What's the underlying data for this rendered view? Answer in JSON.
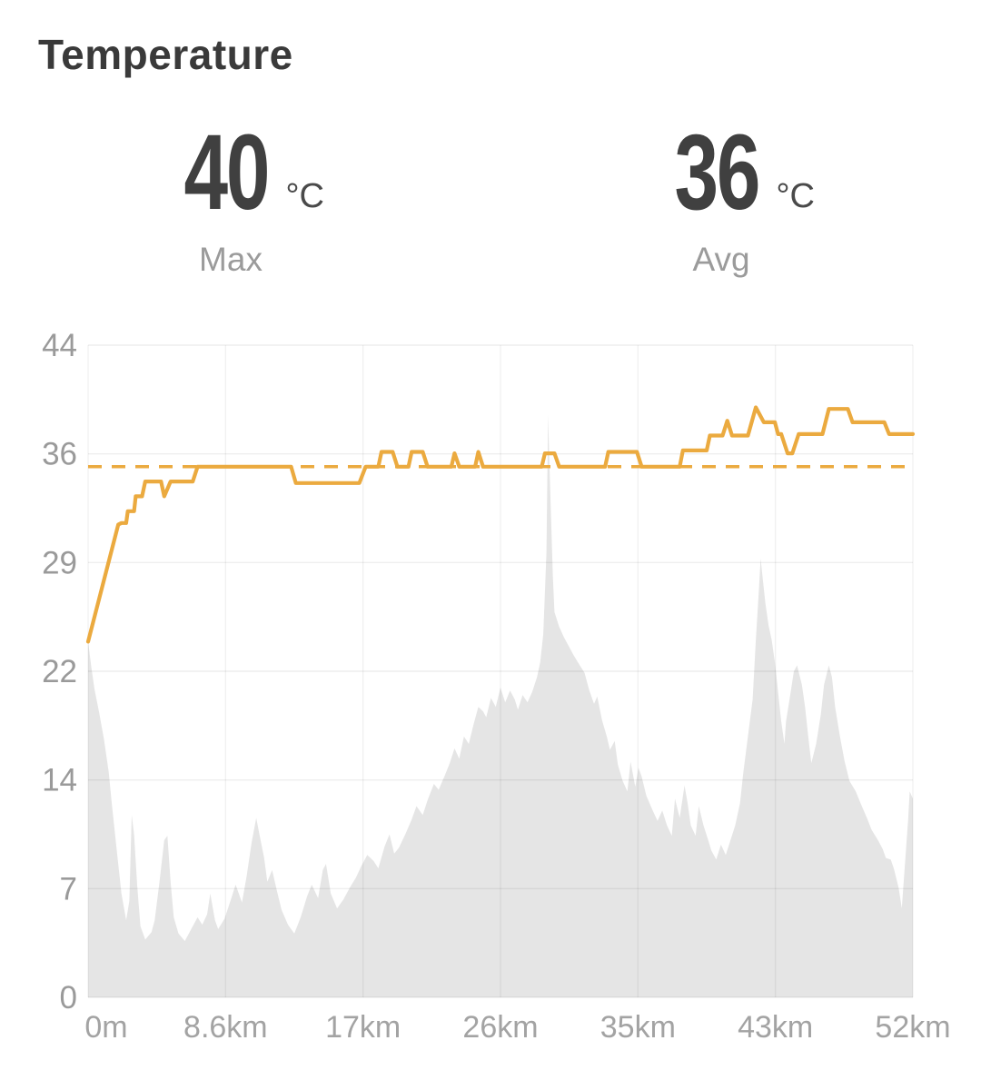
{
  "title": "Temperature",
  "chart_data": {
    "type": "line",
    "title": "Temperature",
    "stats": [
      {
        "value": "40",
        "unit": "°C",
        "label": "Max"
      },
      {
        "value": "36",
        "unit": "°C",
        "label": "Avg"
      }
    ],
    "y_axis": {
      "tick_labels": [
        "44",
        "36",
        "29",
        "22",
        "14",
        "7",
        "0"
      ],
      "range": [
        0,
        44
      ],
      "note": "7 evenly spaced horizontal gridlines, labels top to bottom"
    },
    "x_axis": {
      "tick_labels": [
        "0m",
        "8.6km",
        "17km",
        "26km",
        "35km",
        "43km",
        "52km"
      ],
      "range_km": [
        0,
        52
      ]
    },
    "average_line": {
      "value_c": 35.8,
      "style": "dashed"
    },
    "grid": true,
    "legend": false,
    "colors": {
      "line": "#ebaa3f",
      "elevation_fill": "#e5e5e5",
      "axis_text": "#9a9a9a"
    },
    "series": [
      {
        "name": "temperature",
        "unit": "°C",
        "color": "#ebaa3f",
        "points": [
          [
            0,
            24.0
          ],
          [
            1.9,
            31.9
          ],
          [
            2.1,
            32.0
          ],
          [
            2.4,
            32.0
          ],
          [
            2.5,
            32.8
          ],
          [
            2.9,
            32.8
          ],
          [
            3.0,
            33.8
          ],
          [
            3.4,
            33.8
          ],
          [
            3.6,
            34.8
          ],
          [
            4.6,
            34.8
          ],
          [
            4.8,
            33.8
          ],
          [
            5.2,
            34.8
          ],
          [
            6.6,
            34.8
          ],
          [
            6.9,
            35.8
          ],
          [
            12.8,
            35.8
          ],
          [
            13.1,
            34.7
          ],
          [
            17.1,
            34.7
          ],
          [
            17.5,
            35.8
          ],
          [
            18.3,
            35.8
          ],
          [
            18.5,
            36.8
          ],
          [
            19.2,
            36.8
          ],
          [
            19.5,
            35.8
          ],
          [
            20.2,
            35.8
          ],
          [
            20.4,
            36.8
          ],
          [
            21.1,
            36.8
          ],
          [
            21.4,
            35.8
          ],
          [
            22.9,
            35.8
          ],
          [
            23.1,
            36.7
          ],
          [
            23.4,
            35.8
          ],
          [
            24.4,
            35.8
          ],
          [
            24.6,
            36.8
          ],
          [
            24.9,
            35.8
          ],
          [
            28.6,
            35.8
          ],
          [
            28.8,
            36.7
          ],
          [
            29.4,
            36.7
          ],
          [
            29.7,
            35.8
          ],
          [
            32.6,
            35.8
          ],
          [
            32.8,
            36.8
          ],
          [
            34.6,
            36.8
          ],
          [
            34.9,
            35.8
          ],
          [
            37.3,
            35.8
          ],
          [
            37.5,
            36.9
          ],
          [
            39.0,
            36.9
          ],
          [
            39.2,
            37.9
          ],
          [
            40.0,
            37.9
          ],
          [
            40.3,
            38.9
          ],
          [
            40.6,
            37.9
          ],
          [
            41.6,
            37.9
          ],
          [
            42.1,
            39.8
          ],
          [
            42.6,
            38.8
          ],
          [
            43.3,
            38.8
          ],
          [
            43.5,
            38.0
          ],
          [
            43.7,
            38.0
          ],
          [
            44.1,
            36.7
          ],
          [
            44.4,
            36.7
          ],
          [
            44.8,
            38.0
          ],
          [
            46.3,
            38.0
          ],
          [
            46.7,
            39.7
          ],
          [
            47.9,
            39.7
          ],
          [
            48.2,
            38.8
          ],
          [
            50.2,
            38.8
          ],
          [
            50.5,
            38.0
          ],
          [
            52,
            38.0
          ]
        ]
      },
      {
        "name": "elevation-profile",
        "color": "#e5e5e5",
        "note": "gray background silhouette; values on the displayed 0-44 axis scale (no elevation axis shown)",
        "points": [
          [
            0,
            24
          ],
          [
            0.2,
            22.3
          ],
          [
            0.4,
            20.8
          ],
          [
            0.7,
            19.2
          ],
          [
            1.0,
            17.4
          ],
          [
            1.3,
            15.2
          ],
          [
            1.5,
            13.0
          ],
          [
            1.8,
            10.0
          ],
          [
            2.1,
            7.0
          ],
          [
            2.4,
            5.2
          ],
          [
            2.6,
            6.5
          ],
          [
            2.75,
            12.3
          ],
          [
            2.9,
            11.0
          ],
          [
            3.1,
            7.5
          ],
          [
            3.3,
            4.8
          ],
          [
            3.6,
            3.9
          ],
          [
            4.0,
            4.4
          ],
          [
            4.2,
            5.2
          ],
          [
            4.5,
            7.8
          ],
          [
            4.8,
            10.6
          ],
          [
            5.0,
            10.9
          ],
          [
            5.2,
            7.8
          ],
          [
            5.4,
            5.4
          ],
          [
            5.7,
            4.3
          ],
          [
            6.1,
            3.8
          ],
          [
            6.5,
            4.6
          ],
          [
            6.9,
            5.4
          ],
          [
            7.2,
            4.9
          ],
          [
            7.5,
            5.6
          ],
          [
            7.7,
            7.0
          ],
          [
            8.0,
            5.2
          ],
          [
            8.2,
            4.6
          ],
          [
            8.6,
            5.3
          ],
          [
            9.0,
            6.6
          ],
          [
            9.3,
            7.6
          ],
          [
            9.7,
            6.4
          ],
          [
            10.0,
            8.2
          ],
          [
            10.3,
            10.4
          ],
          [
            10.6,
            12.1
          ],
          [
            10.8,
            11.0
          ],
          [
            11.1,
            9.4
          ],
          [
            11.3,
            7.8
          ],
          [
            11.6,
            8.6
          ],
          [
            11.9,
            7.2
          ],
          [
            12.2,
            5.9
          ],
          [
            12.6,
            4.9
          ],
          [
            13.0,
            4.3
          ],
          [
            13.4,
            5.4
          ],
          [
            13.8,
            6.8
          ],
          [
            14.1,
            7.6
          ],
          [
            14.5,
            6.7
          ],
          [
            14.8,
            8.6
          ],
          [
            15.0,
            9.0
          ],
          [
            15.3,
            7.0
          ],
          [
            15.7,
            6.0
          ],
          [
            16.1,
            6.6
          ],
          [
            16.5,
            7.4
          ],
          [
            16.9,
            8.1
          ],
          [
            17.2,
            8.8
          ],
          [
            17.6,
            9.6
          ],
          [
            18.0,
            9.2
          ],
          [
            18.3,
            8.7
          ],
          [
            18.7,
            10.2
          ],
          [
            19.0,
            11.0
          ],
          [
            19.3,
            9.7
          ],
          [
            19.6,
            10.1
          ],
          [
            20.0,
            11.0
          ],
          [
            20.4,
            12.0
          ],
          [
            20.7,
            12.9
          ],
          [
            21.1,
            12.3
          ],
          [
            21.4,
            13.3
          ],
          [
            21.8,
            14.4
          ],
          [
            22.1,
            14.0
          ],
          [
            22.5,
            15.0
          ],
          [
            22.8,
            15.8
          ],
          [
            23.1,
            16.8
          ],
          [
            23.4,
            16.1
          ],
          [
            23.7,
            17.6
          ],
          [
            24.0,
            17.1
          ],
          [
            24.3,
            18.4
          ],
          [
            24.6,
            19.6
          ],
          [
            24.9,
            19.3
          ],
          [
            25.1,
            18.9
          ],
          [
            25.4,
            20.2
          ],
          [
            25.7,
            19.6
          ],
          [
            26.0,
            20.9
          ],
          [
            26.3,
            19.9
          ],
          [
            26.6,
            20.7
          ],
          [
            26.9,
            20.1
          ],
          [
            27.1,
            19.4
          ],
          [
            27.4,
            20.4
          ],
          [
            27.7,
            19.9
          ],
          [
            28.0,
            20.6
          ],
          [
            28.3,
            21.6
          ],
          [
            28.5,
            22.6
          ],
          [
            28.7,
            24.5
          ],
          [
            28.9,
            30.0
          ],
          [
            29.0,
            39.3
          ],
          [
            29.1,
            35.5
          ],
          [
            29.3,
            28.5
          ],
          [
            29.4,
            26.0
          ],
          [
            29.7,
            25.0
          ],
          [
            30.0,
            24.3
          ],
          [
            30.3,
            23.7
          ],
          [
            30.6,
            23.1
          ],
          [
            31.0,
            22.4
          ],
          [
            31.3,
            21.9
          ],
          [
            31.6,
            20.7
          ],
          [
            31.9,
            19.8
          ],
          [
            32.1,
            20.3
          ],
          [
            32.4,
            18.7
          ],
          [
            32.7,
            17.6
          ],
          [
            32.9,
            16.7
          ],
          [
            33.2,
            17.3
          ],
          [
            33.4,
            15.7
          ],
          [
            33.7,
            14.6
          ],
          [
            34.0,
            13.9
          ],
          [
            34.2,
            15.9
          ],
          [
            34.5,
            14.2
          ],
          [
            34.7,
            15.5
          ],
          [
            34.9,
            14.9
          ],
          [
            35.2,
            13.6
          ],
          [
            35.6,
            12.6
          ],
          [
            35.9,
            11.9
          ],
          [
            36.2,
            12.6
          ],
          [
            36.5,
            11.6
          ],
          [
            36.8,
            10.9
          ],
          [
            37.0,
            13.4
          ],
          [
            37.3,
            12.1
          ],
          [
            37.6,
            14.3
          ],
          [
            37.8,
            13.1
          ],
          [
            38.0,
            11.6
          ],
          [
            38.3,
            10.9
          ],
          [
            38.5,
            12.9
          ],
          [
            38.8,
            11.6
          ],
          [
            39.1,
            10.6
          ],
          [
            39.3,
            9.9
          ],
          [
            39.6,
            9.3
          ],
          [
            39.9,
            10.3
          ],
          [
            40.2,
            9.6
          ],
          [
            40.5,
            10.6
          ],
          [
            40.8,
            11.6
          ],
          [
            41.1,
            13.1
          ],
          [
            41.3,
            15.1
          ],
          [
            41.6,
            17.6
          ],
          [
            41.9,
            20.1
          ],
          [
            42.1,
            24.1
          ],
          [
            42.3,
            27.6
          ],
          [
            42.4,
            29.6
          ],
          [
            42.5,
            28.6
          ],
          [
            42.7,
            26.6
          ],
          [
            42.9,
            25.1
          ],
          [
            43.1,
            24.1
          ],
          [
            43.3,
            22.6
          ],
          [
            43.5,
            20.6
          ],
          [
            43.7,
            18.6
          ],
          [
            43.9,
            17.1
          ],
          [
            44.0,
            18.6
          ],
          [
            44.3,
            20.6
          ],
          [
            44.5,
            22.0
          ],
          [
            44.7,
            22.4
          ],
          [
            45.0,
            21.1
          ],
          [
            45.2,
            19.6
          ],
          [
            45.4,
            17.6
          ],
          [
            45.6,
            15.8
          ],
          [
            45.9,
            17.1
          ],
          [
            46.2,
            19.1
          ],
          [
            46.4,
            21.1
          ],
          [
            46.7,
            22.4
          ],
          [
            46.9,
            21.6
          ],
          [
            47.1,
            19.6
          ],
          [
            47.4,
            17.6
          ],
          [
            47.7,
            15.9
          ],
          [
            48.0,
            14.6
          ],
          [
            48.4,
            13.9
          ],
          [
            48.7,
            13.1
          ],
          [
            49.1,
            12.1
          ],
          [
            49.4,
            11.3
          ],
          [
            49.8,
            10.6
          ],
          [
            50.1,
            10.0
          ],
          [
            50.3,
            9.4
          ],
          [
            50.6,
            9.3
          ],
          [
            50.8,
            8.7
          ],
          [
            51.1,
            7.4
          ],
          [
            51.3,
            6.0
          ],
          [
            51.5,
            9.0
          ],
          [
            51.7,
            12.0
          ],
          [
            51.8,
            13.9
          ],
          [
            52,
            13.4
          ]
        ]
      }
    ]
  }
}
